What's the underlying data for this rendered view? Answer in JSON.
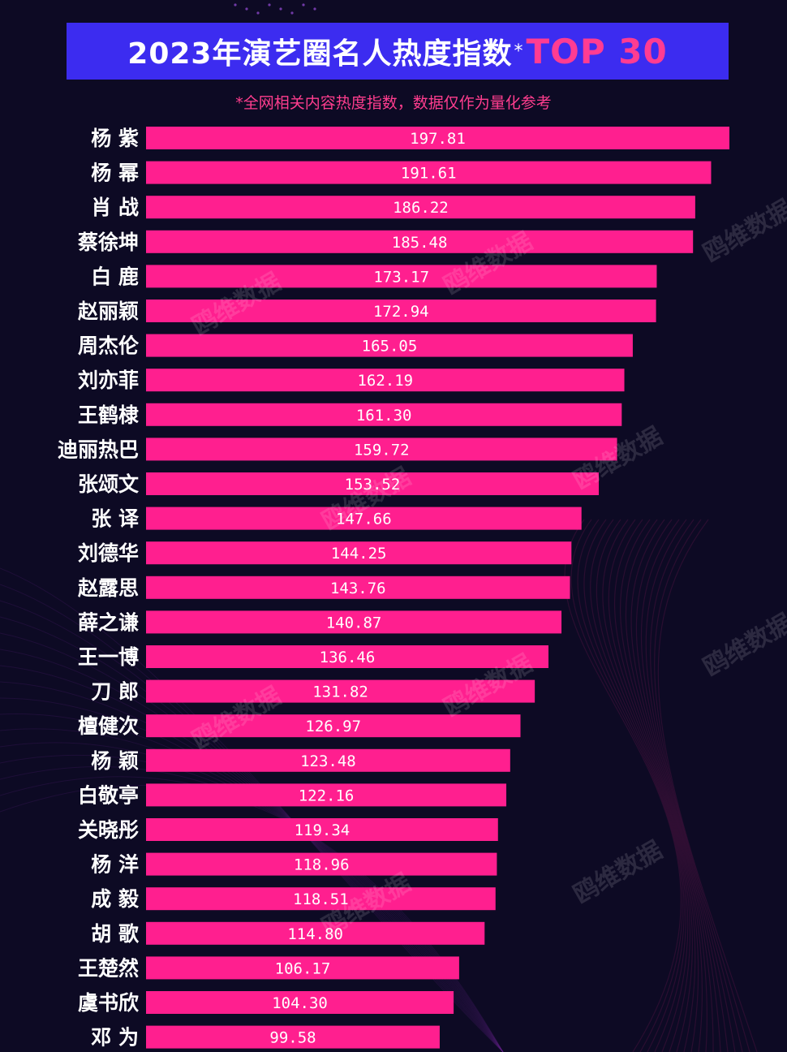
{
  "title": {
    "main": "2023年演艺圈名人热度指数",
    "star": "*",
    "accent": "TOP 30"
  },
  "subtitle": "*全网相关内容热度指数，数据仅作为量化参考",
  "watermark": "鸥维数据",
  "colors": {
    "background": "#0d0a24",
    "title_box": "#3c2cf0",
    "bar": "#ff1f8f",
    "accent": "#ff3c92"
  },
  "chart_data": {
    "type": "bar",
    "orientation": "horizontal",
    "categories": [
      "杨 紫",
      "杨 幂",
      "肖 战",
      "蔡徐坤",
      "白 鹿",
      "赵丽颖",
      "周杰伦",
      "刘亦菲",
      "王鹤棣",
      "迪丽热巴",
      "张颂文",
      "张 译",
      "刘德华",
      "赵露思",
      "薛之谦",
      "王一博",
      "刀 郎",
      "檀健次",
      "杨 颖",
      "白敬亭",
      "关晓彤",
      "杨 洋",
      "成 毅",
      "胡 歌",
      "王楚然",
      "虞书欣",
      "邓 为"
    ],
    "values": [
      197.81,
      191.61,
      186.22,
      185.48,
      173.17,
      172.94,
      165.05,
      162.19,
      161.3,
      159.72,
      153.52,
      147.66,
      144.25,
      143.76,
      140.87,
      136.46,
      131.82,
      126.97,
      123.48,
      122.16,
      119.34,
      118.96,
      118.51,
      114.8,
      106.17,
      104.3,
      99.58
    ],
    "value_labels": [
      "197.81",
      "191.61",
      "186.22",
      "185.48",
      "173.17",
      "172.94",
      "165.05",
      "162.19",
      "161.30",
      "159.72",
      "153.52",
      "147.66",
      "144.25",
      "143.76",
      "140.87",
      "136.46",
      "131.82",
      "126.97",
      "123.48",
      "122.16",
      "119.34",
      "118.96",
      "118.51",
      "114.80",
      "106.17",
      "104.30",
      "99.58"
    ],
    "xlim": [
      0,
      197.81
    ],
    "grid": false,
    "legend": "none"
  }
}
